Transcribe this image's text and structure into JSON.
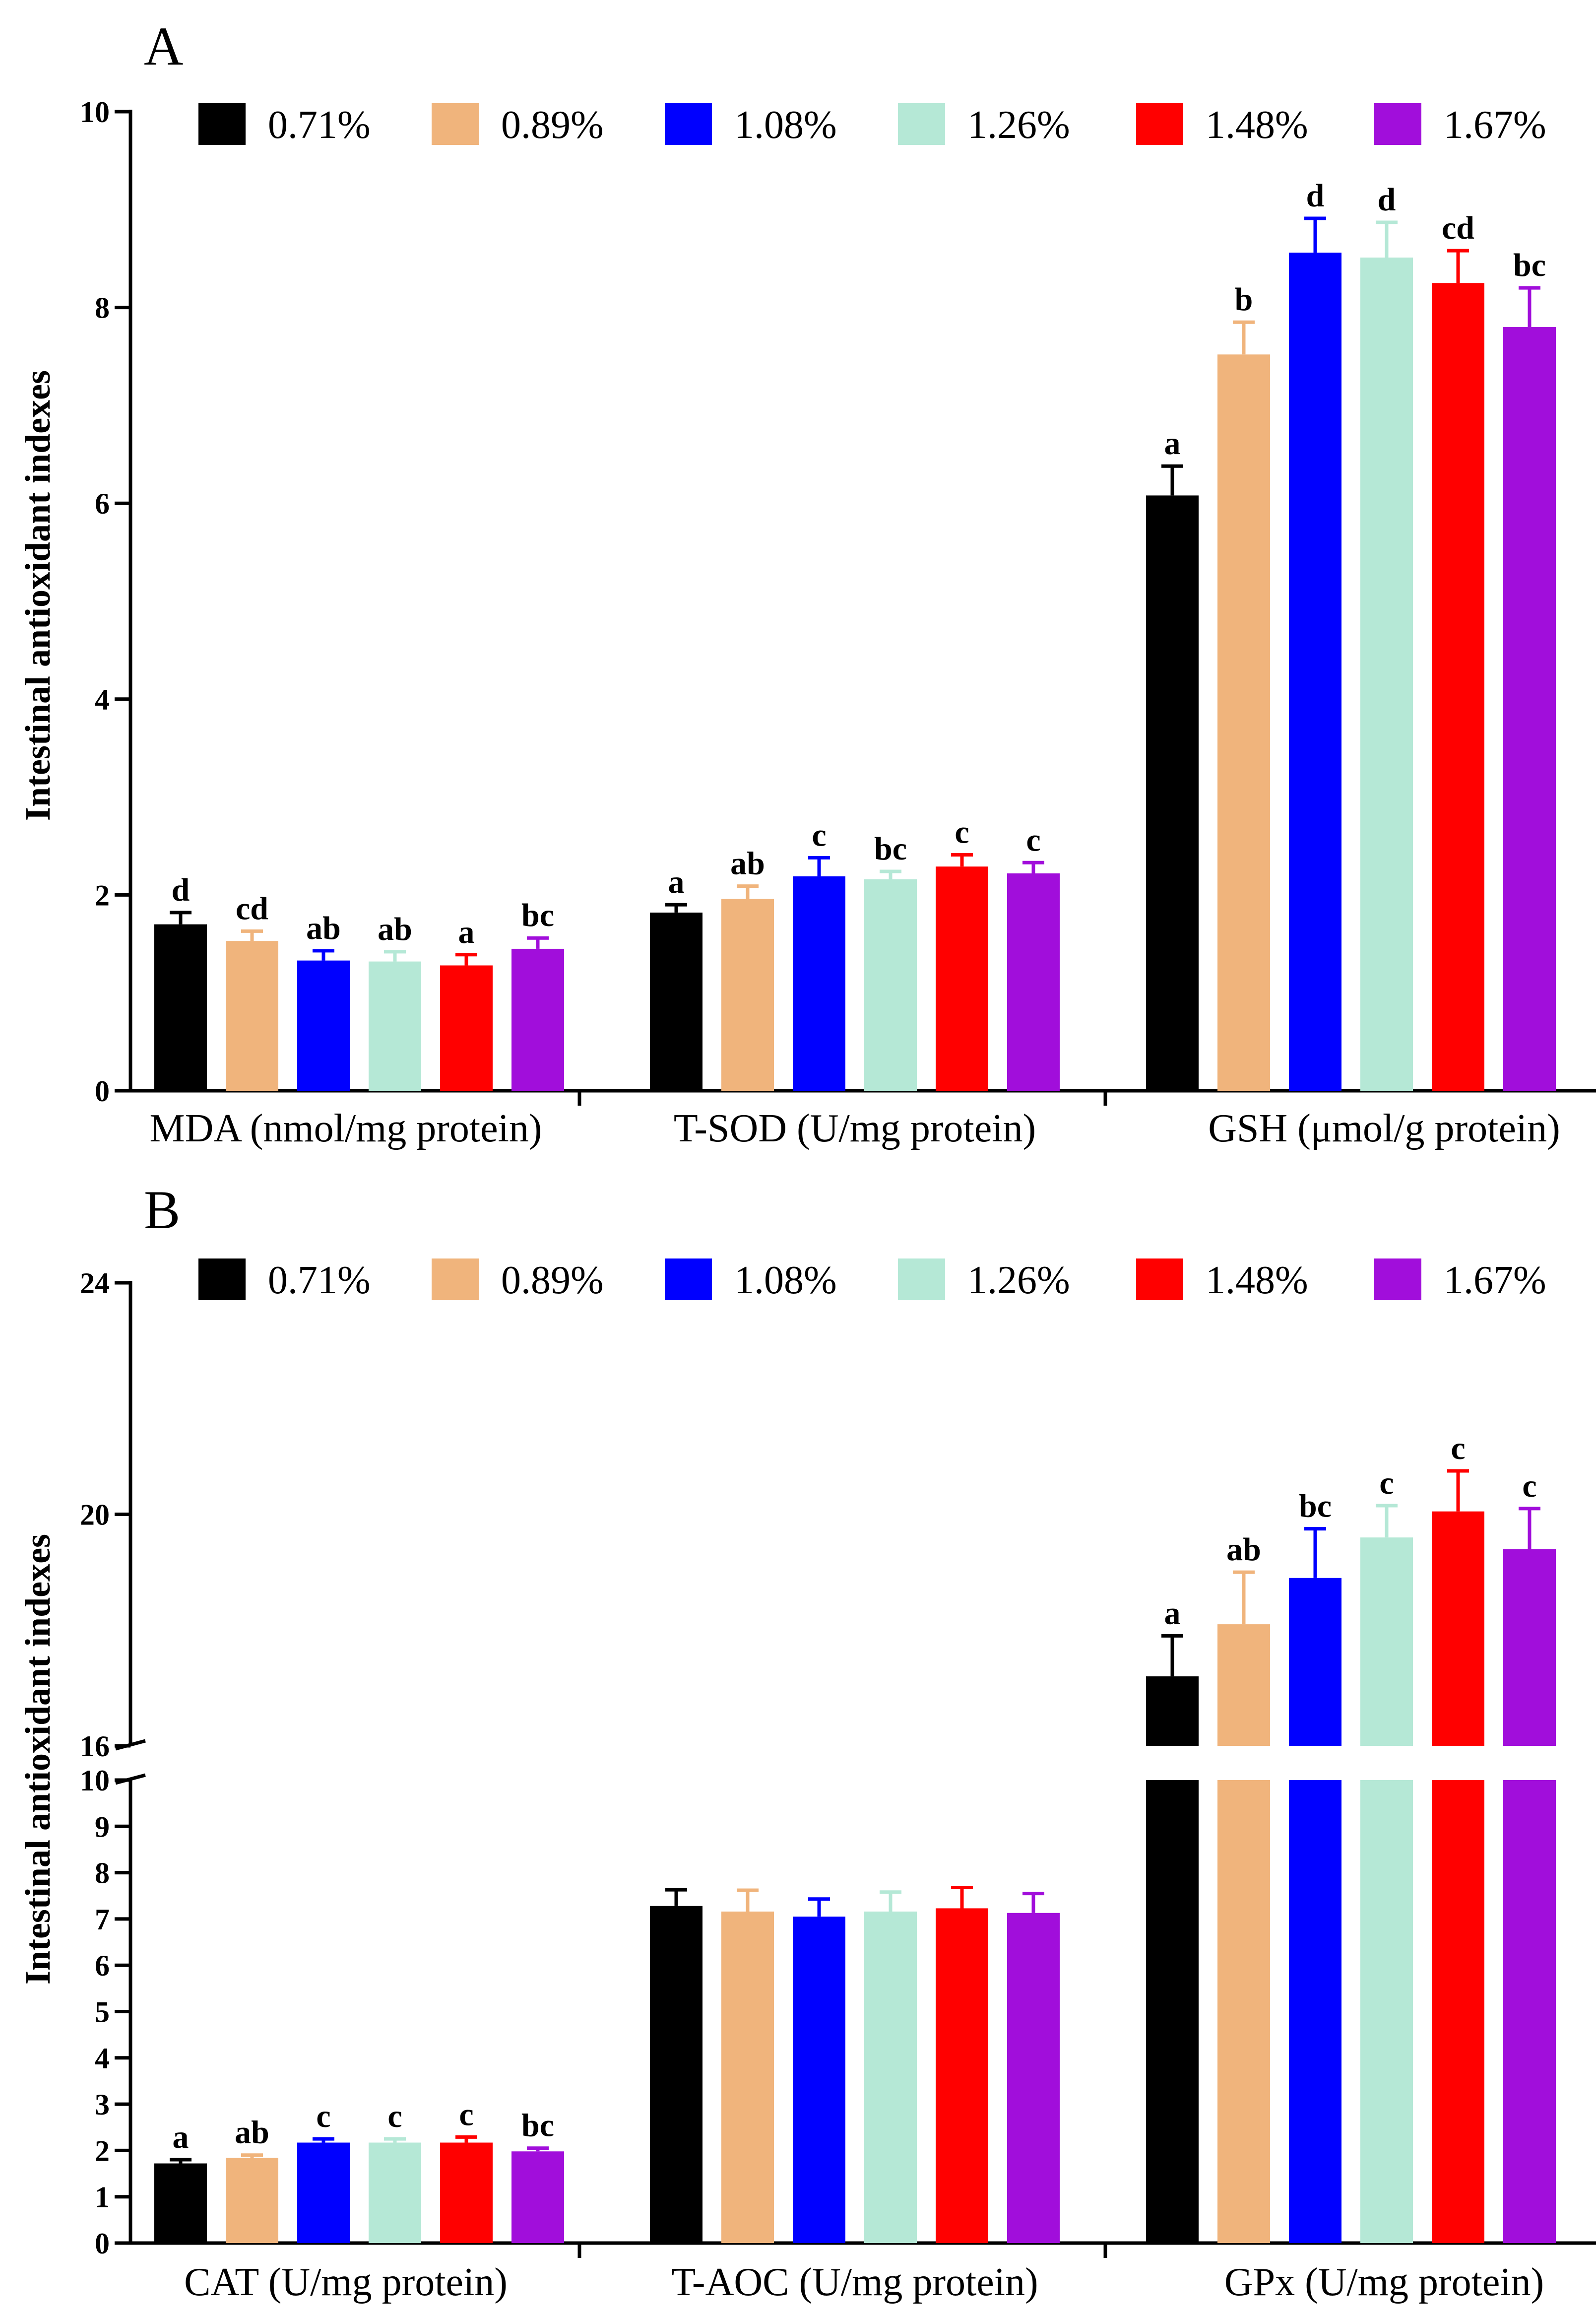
{
  "chart_data": [
    {
      "panel": "A",
      "type": "bar",
      "ylabel": "Intestinal antioxidant indexes",
      "ylim": [
        0,
        10
      ],
      "yticks": [
        0,
        2,
        4,
        6,
        8,
        10
      ],
      "categories": [
        "MDA (nmol/mg protein)",
        "T-SOD (U/mg protein)",
        "GSH (μmol/g protein)"
      ],
      "legend": {
        "placement": "top"
      },
      "series": [
        {
          "name": "0.71%",
          "color": "#000000",
          "values": [
            1.7,
            1.82,
            6.08
          ],
          "errors": [
            0.12,
            0.08,
            0.3
          ],
          "letters": [
            "d",
            "a",
            "a"
          ]
        },
        {
          "name": "0.89%",
          "color": "#F0B47C",
          "values": [
            1.53,
            1.96,
            7.52
          ],
          "errors": [
            0.1,
            0.13,
            0.33
          ],
          "letters": [
            "cd",
            "ab",
            "b"
          ]
        },
        {
          "name": "1.08%",
          "color": "#0000FF",
          "values": [
            1.33,
            2.19,
            8.56
          ],
          "errors": [
            0.1,
            0.19,
            0.35
          ],
          "letters": [
            "ab",
            "c",
            "d"
          ]
        },
        {
          "name": "1.26%",
          "color": "#B5E8D6",
          "values": [
            1.32,
            2.16,
            8.51
          ],
          "errors": [
            0.1,
            0.08,
            0.36
          ],
          "letters": [
            "ab",
            "bc",
            "d"
          ]
        },
        {
          "name": "1.48%",
          "color": "#FF0000",
          "values": [
            1.28,
            2.29,
            8.25
          ],
          "errors": [
            0.11,
            0.12,
            0.33
          ],
          "letters": [
            "a",
            "c",
            "cd"
          ]
        },
        {
          "name": "1.67%",
          "color": "#A10EDB",
          "values": [
            1.45,
            2.22,
            7.8
          ],
          "errors": [
            0.11,
            0.11,
            0.4
          ],
          "letters": [
            "bc",
            "c",
            "bc"
          ]
        }
      ]
    },
    {
      "panel": "B",
      "type": "bar",
      "ylabel": "Intestinal antioxidant indexes",
      "ylim": [
        0,
        24
      ],
      "axis_break": [
        10,
        16
      ],
      "yticks_lower": [
        0,
        1,
        2,
        3,
        4,
        5,
        6,
        7,
        8,
        9,
        10
      ],
      "yticks_upper": [
        16,
        20,
        24
      ],
      "categories": [
        "CAT (U/mg protein)",
        "T-AOC (U/mg protein)",
        "GPx (U/mg protein)"
      ],
      "legend": {
        "placement": "top"
      },
      "series": [
        {
          "name": "0.71%",
          "color": "#000000",
          "values": [
            1.72,
            7.28,
            17.2
          ],
          "errors": [
            0.08,
            0.35,
            0.7
          ],
          "letters": [
            "a",
            "",
            "a"
          ]
        },
        {
          "name": "0.89%",
          "color": "#F0B47C",
          "values": [
            1.84,
            7.16,
            18.1
          ],
          "errors": [
            0.06,
            0.46,
            0.9
          ],
          "letters": [
            "ab",
            "",
            "ab"
          ]
        },
        {
          "name": "1.08%",
          "color": "#0000FF",
          "values": [
            2.17,
            7.05,
            18.9
          ],
          "errors": [
            0.08,
            0.38,
            0.85
          ],
          "letters": [
            "c",
            "",
            "bc"
          ]
        },
        {
          "name": "1.26%",
          "color": "#B5E8D6",
          "values": [
            2.17,
            7.16,
            19.6
          ],
          "errors": [
            0.08,
            0.42,
            0.55
          ],
          "letters": [
            "c",
            "",
            "c"
          ]
        },
        {
          "name": "1.48%",
          "color": "#FF0000",
          "values": [
            2.17,
            7.23,
            20.05
          ],
          "errors": [
            0.12,
            0.45,
            0.7
          ],
          "letters": [
            "c",
            "",
            "c"
          ]
        },
        {
          "name": "1.67%",
          "color": "#A10EDB",
          "values": [
            1.98,
            7.13,
            19.4
          ],
          "errors": [
            0.07,
            0.42,
            0.7
          ],
          "letters": [
            "bc",
            "",
            "c"
          ]
        }
      ]
    }
  ]
}
